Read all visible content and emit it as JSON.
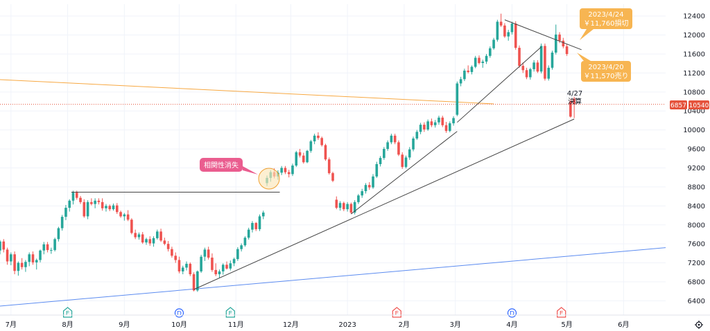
{
  "chart_data": {
    "type": "candlestick",
    "y_axis": {
      "ticks": [
        "12400",
        "12000",
        "11600",
        "11200",
        "10800",
        "10400",
        "10000",
        "9600",
        "9200",
        "8800",
        "8400",
        "8000",
        "7600",
        "7200",
        "6800",
        "6400"
      ],
      "ylim": [
        6100,
        12650
      ],
      "position": "right"
    },
    "x_axis": {
      "ticks": [
        "7月",
        "8月",
        "9月",
        "10月",
        "11月",
        "12月",
        "2023",
        "2月",
        "3月",
        "4月",
        "5月",
        "6月"
      ],
      "tick_days": [
        0,
        31,
        62,
        92,
        123,
        153,
        184,
        215,
        243,
        274,
        304,
        335
      ],
      "range_days": [
        -6,
        358
      ]
    },
    "price_labels": {
      "symbol": "6857",
      "last": "10540",
      "last_value": 10540
    },
    "candles": [
      [
        -6,
        7460,
        7680,
        7380,
        7650
      ],
      [
        -4,
        7650,
        7700,
        7420,
        7480
      ],
      [
        -2,
        7480,
        7520,
        7160,
        7230
      ],
      [
        0,
        7230,
        7420,
        7150,
        7380
      ],
      [
        2,
        7380,
        7440,
        6960,
        7030
      ],
      [
        4,
        7030,
        7230,
        6930,
        7200
      ],
      [
        6,
        7200,
        7300,
        7060,
        7110
      ],
      [
        8,
        7110,
        7260,
        7010,
        7220
      ],
      [
        10,
        7220,
        7420,
        7130,
        7380
      ],
      [
        12,
        7380,
        7440,
        7160,
        7210
      ],
      [
        14,
        7210,
        7290,
        7060,
        7260
      ],
      [
        16,
        7260,
        7480,
        7210,
        7460
      ],
      [
        18,
        7460,
        7640,
        7380,
        7590
      ],
      [
        20,
        7590,
        7640,
        7420,
        7470
      ],
      [
        22,
        7470,
        7520,
        7390,
        7470
      ],
      [
        24,
        7470,
        7730,
        7440,
        7700
      ],
      [
        26,
        7700,
        7960,
        7650,
        7930
      ],
      [
        28,
        7930,
        8210,
        7880,
        8170
      ],
      [
        30,
        8170,
        8420,
        8100,
        8360
      ],
      [
        32,
        8360,
        8540,
        8280,
        8510
      ],
      [
        34,
        8510,
        8720,
        8430,
        8680
      ],
      [
        36,
        8680,
        8720,
        8530,
        8570
      ],
      [
        38,
        8570,
        8610,
        8440,
        8480
      ],
      [
        40,
        8480,
        8540,
        8150,
        8180
      ],
      [
        42,
        8180,
        8520,
        8120,
        8480
      ],
      [
        44,
        8480,
        8560,
        8410,
        8440
      ],
      [
        46,
        8440,
        8560,
        8350,
        8510
      ],
      [
        48,
        8510,
        8560,
        8430,
        8480
      ],
      [
        50,
        8480,
        8560,
        8300,
        8350
      ],
      [
        52,
        8350,
        8440,
        8280,
        8400
      ],
      [
        54,
        8400,
        8430,
        8290,
        8330
      ],
      [
        56,
        8330,
        8450,
        8300,
        8410
      ],
      [
        58,
        8410,
        8460,
        8230,
        8270
      ],
      [
        60,
        8270,
        8300,
        8150,
        8180
      ],
      [
        62,
        8180,
        8250,
        8090,
        8220
      ],
      [
        64,
        8220,
        8310,
        8080,
        8110
      ],
      [
        66,
        8110,
        8140,
        7800,
        7830
      ],
      [
        68,
        7830,
        7900,
        7700,
        7740
      ],
      [
        70,
        7740,
        7840,
        7690,
        7800
      ],
      [
        72,
        7800,
        7850,
        7600,
        7630
      ],
      [
        74,
        7630,
        7730,
        7580,
        7700
      ],
      [
        76,
        7700,
        7760,
        7560,
        7610
      ],
      [
        78,
        7610,
        7760,
        7540,
        7720
      ],
      [
        80,
        7720,
        7900,
        7690,
        7860
      ],
      [
        82,
        7860,
        7920,
        7640,
        7670
      ],
      [
        84,
        7670,
        7730,
        7570,
        7600
      ],
      [
        86,
        7600,
        7660,
        7440,
        7490
      ],
      [
        88,
        7490,
        7540,
        7310,
        7350
      ],
      [
        90,
        7350,
        7420,
        7200,
        7260
      ],
      [
        92,
        7260,
        7330,
        6980,
        7020
      ],
      [
        94,
        7020,
        7140,
        6960,
        7100
      ],
      [
        96,
        7100,
        7230,
        7040,
        7180
      ],
      [
        98,
        7180,
        7210,
        6920,
        6960
      ],
      [
        100,
        6960,
        7000,
        6600,
        6620
      ],
      [
        102,
        6620,
        7040,
        6590,
        7020
      ],
      [
        104,
        7020,
        7370,
        6990,
        7330
      ],
      [
        106,
        7330,
        7520,
        7240,
        7480
      ],
      [
        108,
        7480,
        7540,
        7270,
        7310
      ],
      [
        110,
        7310,
        7400,
        7010,
        7050
      ],
      [
        112,
        7050,
        7190,
        6920,
        6960
      ],
      [
        114,
        6960,
        7060,
        6880,
        7020
      ],
      [
        116,
        7020,
        7190,
        6950,
        7160
      ],
      [
        118,
        7160,
        7230,
        7060,
        7080
      ],
      [
        120,
        7080,
        7250,
        7040,
        7190
      ],
      [
        122,
        7190,
        7310,
        7130,
        7280
      ],
      [
        124,
        7280,
        7530,
        7240,
        7490
      ],
      [
        126,
        7490,
        7610,
        7440,
        7570
      ],
      [
        128,
        7570,
        7760,
        7540,
        7730
      ],
      [
        130,
        7730,
        7940,
        7690,
        7900
      ],
      [
        132,
        7900,
        8080,
        7840,
        8040
      ],
      [
        134,
        8040,
        8060,
        7870,
        7910
      ],
      [
        136,
        7910,
        8220,
        7870,
        8180
      ],
      [
        138,
        8180,
        8300,
        8120,
        8260
      ],
      [
        140,
        8880,
        9040,
        8820,
        8990
      ],
      [
        142,
        8990,
        9150,
        8910,
        9110
      ],
      [
        144,
        9110,
        9190,
        8980,
        9020
      ],
      [
        146,
        9020,
        9150,
        8950,
        9100
      ],
      [
        148,
        9100,
        9240,
        9050,
        9200
      ],
      [
        150,
        9200,
        9240,
        9070,
        9110
      ],
      [
        152,
        9110,
        9160,
        9000,
        9070
      ],
      [
        154,
        9070,
        9290,
        9030,
        9250
      ],
      [
        156,
        9250,
        9560,
        9220,
        9530
      ],
      [
        158,
        9530,
        9600,
        9420,
        9460
      ],
      [
        160,
        9460,
        9520,
        9290,
        9320
      ],
      [
        162,
        9320,
        9580,
        9300,
        9560
      ],
      [
        164,
        9560,
        9790,
        9520,
        9760
      ],
      [
        166,
        9760,
        9920,
        9700,
        9880
      ],
      [
        168,
        9880,
        9950,
        9790,
        9830
      ],
      [
        170,
        9830,
        9860,
        9650,
        9680
      ],
      [
        172,
        9680,
        9710,
        9350,
        9380
      ],
      [
        174,
        9380,
        9420,
        9060,
        9090
      ],
      [
        176,
        9090,
        9120,
        8900,
        8930
      ],
      [
        178,
        8530,
        8600,
        8330,
        8360
      ],
      [
        180,
        8360,
        8500,
        8300,
        8460
      ],
      [
        182,
        8460,
        8490,
        8290,
        8330
      ],
      [
        184,
        8330,
        8480,
        8280,
        8440
      ],
      [
        186,
        8440,
        8470,
        8230,
        8260
      ],
      [
        188,
        8260,
        8520,
        8220,
        8480
      ],
      [
        190,
        8480,
        8650,
        8440,
        8620
      ],
      [
        192,
        8620,
        8760,
        8570,
        8710
      ],
      [
        194,
        8710,
        8880,
        8660,
        8840
      ],
      [
        196,
        8840,
        8900,
        8740,
        8790
      ],
      [
        198,
        8790,
        9070,
        8760,
        9020
      ],
      [
        200,
        9020,
        9330,
        8990,
        9280
      ],
      [
        202,
        9280,
        9450,
        9230,
        9410
      ],
      [
        204,
        9410,
        9640,
        9370,
        9600
      ],
      [
        206,
        9600,
        9780,
        9560,
        9740
      ],
      [
        208,
        9740,
        9920,
        9700,
        9880
      ],
      [
        210,
        9880,
        9920,
        9700,
        9740
      ],
      [
        212,
        9740,
        9780,
        9450,
        9480
      ],
      [
        214,
        9480,
        9530,
        9180,
        9220
      ],
      [
        216,
        9220,
        9460,
        9190,
        9420
      ],
      [
        218,
        9420,
        9640,
        9370,
        9590
      ],
      [
        220,
        9590,
        9860,
        9550,
        9820
      ],
      [
        222,
        9820,
        10000,
        9790,
        9960
      ],
      [
        224,
        9960,
        10150,
        9910,
        10110
      ],
      [
        226,
        10110,
        10160,
        9960,
        10010
      ],
      [
        228,
        10010,
        10220,
        9980,
        10180
      ],
      [
        230,
        10180,
        10240,
        10060,
        10100
      ],
      [
        232,
        10100,
        10210,
        10050,
        10160
      ],
      [
        234,
        10160,
        10300,
        10110,
        10260
      ],
      [
        236,
        10260,
        10300,
        10060,
        10100
      ],
      [
        238,
        10100,
        10170,
        9940,
        9980
      ],
      [
        240,
        9980,
        10180,
        9950,
        10140
      ],
      [
        242,
        10140,
        10290,
        10090,
        10250
      ],
      [
        244,
        10320,
        11020,
        10290,
        10980
      ],
      [
        246,
        10980,
        11120,
        10920,
        11070
      ],
      [
        248,
        11070,
        11290,
        11030,
        11250
      ],
      [
        250,
        11250,
        11360,
        11190,
        11220
      ],
      [
        252,
        11220,
        11360,
        11170,
        11330
      ],
      [
        254,
        11330,
        11560,
        11300,
        11520
      ],
      [
        256,
        11520,
        11570,
        11380,
        11410
      ],
      [
        258,
        11410,
        11480,
        11310,
        11440
      ],
      [
        260,
        11440,
        11600,
        11390,
        11560
      ],
      [
        262,
        11560,
        11760,
        11520,
        11720
      ],
      [
        264,
        11720,
        11940,
        11690,
        11900
      ],
      [
        266,
        11900,
        12320,
        11860,
        12280
      ],
      [
        268,
        12280,
        12450,
        12170,
        12200
      ],
      [
        270,
        12200,
        12250,
        11940,
        11970
      ],
      [
        272,
        11970,
        12110,
        11880,
        12060
      ],
      [
        274,
        12060,
        12280,
        12010,
        12240
      ],
      [
        276,
        12240,
        12290,
        11690,
        11730
      ],
      [
        278,
        11730,
        11780,
        11310,
        11350
      ],
      [
        280,
        11350,
        11420,
        11200,
        11260
      ],
      [
        282,
        11260,
        11310,
        11070,
        11110
      ],
      [
        284,
        11110,
        11310,
        11060,
        11280
      ],
      [
        286,
        11280,
        11470,
        11230,
        11420
      ],
      [
        288,
        11420,
        11470,
        11200,
        11230
      ],
      [
        290,
        11230,
        11820,
        11190,
        11770
      ],
      [
        292,
        11770,
        11820,
        11040,
        11080
      ],
      [
        294,
        11080,
        11360,
        11040,
        11310
      ],
      [
        296,
        11310,
        11670,
        11270,
        11630
      ],
      [
        298,
        11630,
        12220,
        11590,
        12010
      ],
      [
        300,
        12010,
        12060,
        11830,
        11880
      ],
      [
        302,
        11880,
        11940,
        11720,
        11760
      ],
      [
        304,
        11760,
        11810,
        11560,
        11600
      ],
      [
        306,
        10600,
        10650,
        10260,
        10280
      ],
      [
        308,
        10660,
        10700,
        10250,
        10540
      ]
    ],
    "trendlines": [
      {
        "name": "support-main",
        "color": "#444444",
        "p1": [
          100,
          6640
        ],
        "p2": [
          308,
          10230
        ]
      },
      {
        "name": "support-steep",
        "color": "#444444",
        "p1": [
          186,
          8230
        ],
        "p2": [
          244,
          9970
        ]
      },
      {
        "name": "support-upper",
        "color": "#444444",
        "p1": [
          244,
          10160
        ],
        "p2": [
          290,
          11750
        ]
      },
      {
        "name": "resistance-top",
        "color": "#444444",
        "p1": [
          270,
          12320
        ],
        "p2": [
          312,
          11690
        ]
      },
      {
        "name": "resistance-horizontal",
        "color": "#444444",
        "p1": [
          33,
          8690
        ],
        "p2": [
          147,
          8690
        ]
      },
      {
        "name": "orange-long",
        "color": "#f7a842",
        "p1": [
          -6,
          11060
        ],
        "p2": [
          264,
          10550
        ]
      },
      {
        "name": "blue-long",
        "color": "#5b8bf0",
        "p1": [
          -6,
          6290
        ],
        "p2": [
          358,
          7520
        ]
      }
    ],
    "horizontal_line": {
      "value": 10540,
      "color": "#e5533c"
    },
    "annotations": [
      {
        "name": "correlation-loss",
        "text": "相関性消失"
      },
      {
        "name": "sell-2023-04-20",
        "lines": [
          "2023/4/20",
          "￥11,570売り"
        ]
      },
      {
        "name": "stop-2023-04-24",
        "lines": [
          "2023/4/24",
          "￥11,760損切"
        ]
      },
      {
        "name": "earnings-date",
        "lines": [
          "4/27",
          "決算"
        ]
      }
    ],
    "events": [
      {
        "day": 31,
        "label": "E",
        "kind": "earnings"
      },
      {
        "day": 92,
        "label": "D",
        "kind": "dividend"
      },
      {
        "day": 120,
        "label": "E",
        "kind": "earnings"
      },
      {
        "day": 211,
        "label": "E",
        "kind": "earnings-red"
      },
      {
        "day": 274,
        "label": "D",
        "kind": "dividend"
      },
      {
        "day": 301,
        "label": "E",
        "kind": "earnings-red"
      }
    ],
    "colors": {
      "up": "#26a69a",
      "down": "#ef5350",
      "grid": "#f0f3fa"
    }
  }
}
